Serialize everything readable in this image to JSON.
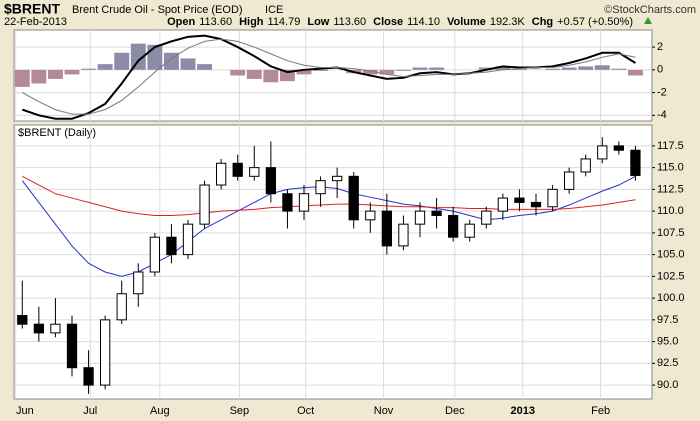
{
  "header": {
    "ticker": "$BRENT",
    "name": "Brent Crude Oil - Spot Price (EOD)",
    "exchange": "ICE",
    "date": "22-Feb-2013",
    "quote": [
      {
        "label": "Open",
        "value": "113.60"
      },
      {
        "label": "High",
        "value": "114.79"
      },
      {
        "label": "Low",
        "value": "113.60"
      },
      {
        "label": "Close",
        "value": "114.10"
      },
      {
        "label": "Volume",
        "value": "192.3K"
      },
      {
        "label": "Chg",
        "value": "+0.57 (+0.50%)"
      }
    ],
    "credit": "©StockCharts.com"
  },
  "chart_data": [
    {
      "type": "macd",
      "ylim": [
        -4.5,
        3.5
      ],
      "yticks": [
        -4,
        -2,
        0,
        2
      ],
      "grid": true,
      "series": [
        {
          "kind": "line",
          "color": "#000000",
          "width": 2,
          "values": [
            -3.5,
            -4.0,
            -4.3,
            -4.3,
            -3.8,
            -3.0,
            -1.2,
            0.8,
            2.0,
            2.5,
            2.9,
            3.0,
            2.7,
            2.0,
            1.2,
            0.3,
            -0.2,
            0,
            0.1,
            0.2,
            -0.2,
            -0.5,
            -0.8,
            -0.7,
            -0.3,
            -0.2,
            -0.4,
            -0.3,
            0,
            0.3,
            0.2,
            0.2,
            0.3,
            0.6,
            1.0,
            1.5,
            1.5,
            0.6
          ]
        },
        {
          "kind": "line",
          "color": "#777777",
          "width": 1,
          "values": [
            -2.0,
            -2.8,
            -3.5,
            -3.9,
            -3.9,
            -3.5,
            -2.7,
            -1.5,
            -0.2,
            1.0,
            1.9,
            2.5,
            2.7,
            2.5,
            2.0,
            1.4,
            0.8,
            0.4,
            0.2,
            0.2,
            0.1,
            -0.1,
            -0.4,
            -0.6,
            -0.5,
            -0.4,
            -0.4,
            -0.3,
            -0.2,
            0,
            0.1,
            0.2,
            0.2,
            0.4,
            0.7,
            1.1,
            1.4,
            1.1
          ]
        },
        {
          "kind": "histogram",
          "color": "#8c8ca8",
          "negative_color": "#b48a98",
          "values": [
            -1.5,
            -1.2,
            -0.8,
            -0.4,
            0.1,
            0.5,
            1.5,
            2.3,
            2.2,
            1.5,
            1.0,
            0.5,
            0,
            -0.5,
            -0.8,
            -1.1,
            -1.0,
            -0.4,
            -0.1,
            0,
            -0.3,
            -0.4,
            -0.4,
            -0.1,
            0.2,
            0.2,
            0,
            0,
            0.2,
            0.3,
            0.1,
            0,
            0.1,
            0.2,
            0.3,
            0.4,
            0.1,
            -0.5
          ]
        }
      ]
    },
    {
      "type": "candlestick",
      "title": "$BRENT (Daily)",
      "grid": true,
      "x": [
        0,
        1,
        2,
        3,
        4,
        5,
        6,
        7,
        8,
        9,
        10,
        11,
        12,
        13,
        14,
        15,
        16,
        17,
        18,
        19,
        20,
        21,
        22,
        23,
        24,
        25,
        26,
        27,
        28,
        29,
        30,
        31,
        32,
        33,
        34,
        35,
        36,
        37
      ],
      "xlim": [
        -0.5,
        38
      ],
      "xticks": [
        {
          "value": -0.4,
          "label": "Jun"
        },
        {
          "value": 4.1,
          "label": "Jul"
        },
        {
          "value": 8.3,
          "label": "Aug"
        },
        {
          "value": 13.1,
          "label": "Sep"
        },
        {
          "value": 17.1,
          "label": "Oct"
        },
        {
          "value": 21.8,
          "label": "Nov"
        },
        {
          "value": 26.1,
          "label": "Dec"
        },
        {
          "value": 30.2,
          "label": "2013"
        },
        {
          "value": 34.9,
          "label": "Feb"
        }
      ],
      "ylim": [
        88.4,
        119.9
      ],
      "yticks": [
        {
          "value": 90,
          "label": "90.0"
        },
        {
          "value": 92.5,
          "label": "92.5"
        },
        {
          "value": 95,
          "label": "95.0"
        },
        {
          "value": 97.5,
          "label": "97.5"
        },
        {
          "value": 100,
          "label": "100.0"
        },
        {
          "value": 102.5,
          "label": "102.5"
        },
        {
          "value": 105,
          "label": "105.0"
        },
        {
          "value": 107.5,
          "label": "107.5"
        },
        {
          "value": 110,
          "label": "110.0"
        },
        {
          "value": 112.5,
          "label": "112.5"
        },
        {
          "value": 115,
          "label": "115.0"
        },
        {
          "value": 117.5,
          "label": "117.5"
        }
      ],
      "color": "#000000",
      "open": [
        98,
        97,
        96,
        97,
        92,
        90,
        97.5,
        100.5,
        103,
        107,
        105,
        108.5,
        113,
        115.5,
        114,
        115,
        112,
        110,
        112,
        113.5,
        114,
        109,
        110,
        106,
        108.5,
        110,
        109.5,
        107,
        108.5,
        110,
        111.5,
        111,
        110.5,
        112.5,
        114.5,
        116,
        117.5,
        117
      ],
      "high": [
        102,
        99,
        100,
        98,
        94,
        98,
        102,
        104,
        107.5,
        108.5,
        109,
        113.5,
        116,
        116.5,
        117.5,
        118,
        112.5,
        113,
        114,
        115,
        114.5,
        111,
        112,
        109.5,
        111,
        111.5,
        110.5,
        109,
        110.5,
        112,
        112.5,
        112,
        113,
        115,
        116.5,
        118.5,
        118,
        117.5
      ],
      "low": [
        96.5,
        95,
        95.5,
        91,
        89,
        89.5,
        97,
        99,
        102.5,
        104,
        104.5,
        108,
        112.5,
        113.5,
        113.5,
        111,
        108,
        109,
        110.5,
        111.5,
        108,
        107.5,
        105,
        105.5,
        107,
        108,
        106.5,
        106.5,
        108,
        109,
        110,
        109.5,
        110,
        112,
        114,
        115.5,
        116.5,
        113.5
      ],
      "close": [
        97,
        96,
        97,
        92,
        90,
        97.5,
        100.5,
        103,
        107,
        105,
        108.5,
        113,
        115.5,
        114,
        115,
        112,
        110,
        112,
        113.5,
        114,
        109,
        110,
        106,
        108.5,
        110,
        109.5,
        107,
        108.5,
        110,
        111.5,
        111,
        110.5,
        112.5,
        114.5,
        116,
        117.5,
        117,
        114.1
      ],
      "series": [
        {
          "color": "#2233cc",
          "values": [
            113.5,
            111,
            108.5,
            106,
            104,
            103,
            102.5,
            103,
            104,
            105,
            106.5,
            108,
            109,
            110,
            111,
            112,
            112.5,
            112.7,
            112.8,
            112.6,
            112,
            111.6,
            111.2,
            110.8,
            110.6,
            110.3,
            110,
            109.5,
            109,
            109.2,
            109.5,
            109.7,
            110,
            110.7,
            111.5,
            112.3,
            113,
            114
          ]
        },
        {
          "color": "#dd2222",
          "values": [
            114,
            113,
            112,
            111.5,
            111,
            110.5,
            110,
            109.7,
            109.5,
            109.5,
            109.6,
            109.8,
            110,
            110.1,
            110.2,
            110.4,
            110.5,
            110.6,
            110.7,
            110.8,
            110.8,
            110.7,
            110.6,
            110.5,
            110.5,
            110.4,
            110.4,
            110.3,
            110.3,
            110.2,
            110.2,
            110.2,
            110.2,
            110.3,
            110.5,
            110.7,
            111,
            111.3
          ]
        }
      ]
    }
  ]
}
